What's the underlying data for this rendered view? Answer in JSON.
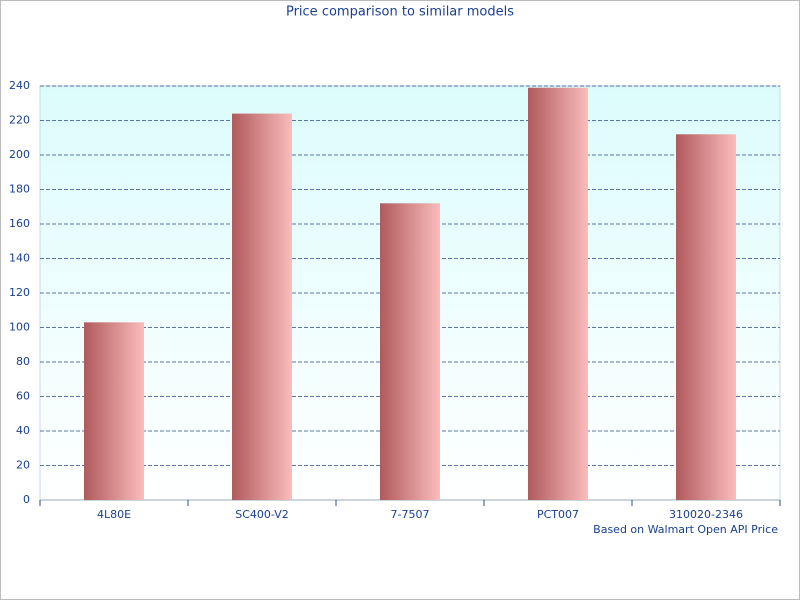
{
  "chart_data": {
    "type": "bar",
    "title": "Price comparison to similar models",
    "categories": [
      "4L80E",
      "SC400-V2",
      "7-7507",
      "PCT007",
      "310020-2346"
    ],
    "values": [
      103,
      224,
      172,
      239,
      212
    ],
    "colors": [
      "#b05a5c",
      "#fbbcbc"
    ],
    "ylim": [
      0,
      240
    ],
    "yticks": [
      0,
      20,
      40,
      60,
      80,
      100,
      120,
      140,
      160,
      180,
      200,
      220,
      240
    ],
    "grid": true,
    "annotation": "Based on Walmart Open API Price"
  }
}
